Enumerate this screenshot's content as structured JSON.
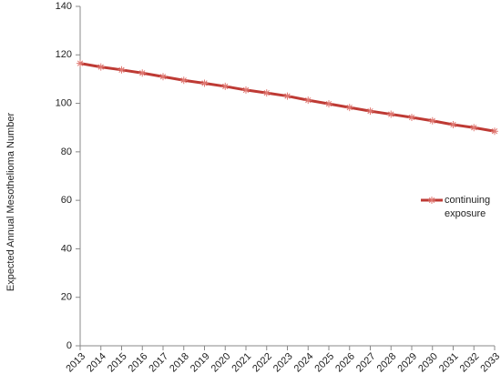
{
  "chart_data": {
    "type": "line",
    "y_label": "Expected Annual Mesothelioma Number",
    "categories": [
      "2013",
      "2014",
      "2015",
      "2016",
      "2017",
      "2018",
      "2019",
      "2020",
      "2021",
      "2022",
      "2023",
      "2024",
      "2025",
      "2026",
      "2027",
      "2028",
      "2029",
      "2030",
      "2031",
      "2032",
      "2033"
    ],
    "series": [
      {
        "name": "continuing exposure",
        "color": "#be3a34",
        "values": [
          116.5,
          115,
          113.8,
          112.5,
          111,
          109.5,
          108.3,
          107,
          105.5,
          104.3,
          103,
          101.3,
          99.8,
          98.3,
          96.8,
          95.5,
          94.2,
          92.8,
          91.2,
          90,
          88.5
        ]
      }
    ],
    "ylim": [
      0,
      140
    ],
    "yticks": [
      0,
      20,
      40,
      60,
      80,
      100,
      120,
      140
    ],
    "legend": "right"
  }
}
